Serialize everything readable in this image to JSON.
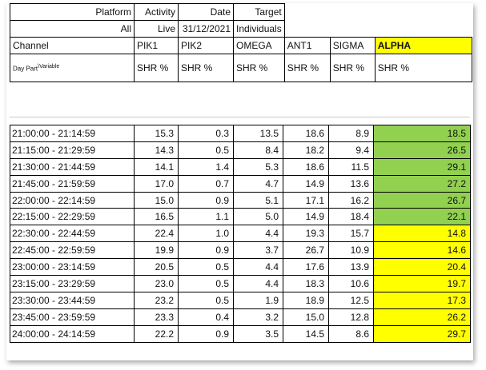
{
  "header": {
    "labels": [
      "Platform",
      "Activity",
      "Date",
      "Target"
    ],
    "values": [
      "All",
      "Live",
      "31/12/2021",
      "Individuals"
    ]
  },
  "columns": {
    "channel_label": "Channel",
    "channels": [
      "PIK1",
      "PIK2",
      "OMEGA",
      "ANT1",
      "SIGMA",
      "ALPHA"
    ],
    "daypart_label": "Day Part",
    "variable_label": "\\Variable",
    "metric": "SHR %"
  },
  "colors": {
    "alpha_header": "#ffff00",
    "high": "#92d050",
    "low": "#ffff00"
  },
  "rows": [
    {
      "time": "21:00:00 - 21:14:59",
      "v": [
        "15.3",
        "0.3",
        "13.5",
        "18.6",
        "8.9",
        "18.5"
      ],
      "flag": "high"
    },
    {
      "time": "21:15:00 - 21:29:59",
      "v": [
        "14.3",
        "0.5",
        "8.4",
        "18.2",
        "9.4",
        "26.5"
      ],
      "flag": "high"
    },
    {
      "time": "21:30:00 - 21:44:59",
      "v": [
        "14.1",
        "1.4",
        "5.3",
        "18.6",
        "11.5",
        "29.1"
      ],
      "flag": "high"
    },
    {
      "time": "21:45:00 - 21:59:59",
      "v": [
        "17.0",
        "0.7",
        "4.7",
        "14.9",
        "13.6",
        "27.2"
      ],
      "flag": "high"
    },
    {
      "time": "22:00:00 - 22:14:59",
      "v": [
        "15.0",
        "0.9",
        "5.1",
        "17.1",
        "16.2",
        "26.7"
      ],
      "flag": "high"
    },
    {
      "time": "22:15:00 - 22:29:59",
      "v": [
        "16.5",
        "1.1",
        "5.0",
        "14.9",
        "18.4",
        "22.1"
      ],
      "flag": "high"
    },
    {
      "time": "22:30:00 - 22:44:59",
      "v": [
        "22.4",
        "1.0",
        "4.4",
        "19.3",
        "15.7",
        "14.8"
      ],
      "flag": "low"
    },
    {
      "time": "22:45:00 - 22:59:59",
      "v": [
        "19.9",
        "0.9",
        "3.7",
        "26.7",
        "10.9",
        "14.6"
      ],
      "flag": "low"
    },
    {
      "time": "23:00:00 - 23:14:59",
      "v": [
        "20.5",
        "0.5",
        "4.4",
        "17.6",
        "13.9",
        "20.4"
      ],
      "flag": "low"
    },
    {
      "time": "23:15:00 - 23:29:59",
      "v": [
        "23.0",
        "0.5",
        "4.4",
        "18.3",
        "10.6",
        "19.7"
      ],
      "flag": "low"
    },
    {
      "time": "23:30:00 - 23:44:59",
      "v": [
        "23.2",
        "0.5",
        "1.9",
        "18.9",
        "12.5",
        "17.3"
      ],
      "flag": "low"
    },
    {
      "time": "23:45:00 - 23:59:59",
      "v": [
        "23.3",
        "0.4",
        "3.2",
        "15.0",
        "12.8",
        "26.2"
      ],
      "flag": "low"
    },
    {
      "time": "24:00:00 - 24:14:59",
      "v": [
        "22.2",
        "0.9",
        "3.5",
        "14.5",
        "8.6",
        "29.7"
      ],
      "flag": "low"
    }
  ]
}
